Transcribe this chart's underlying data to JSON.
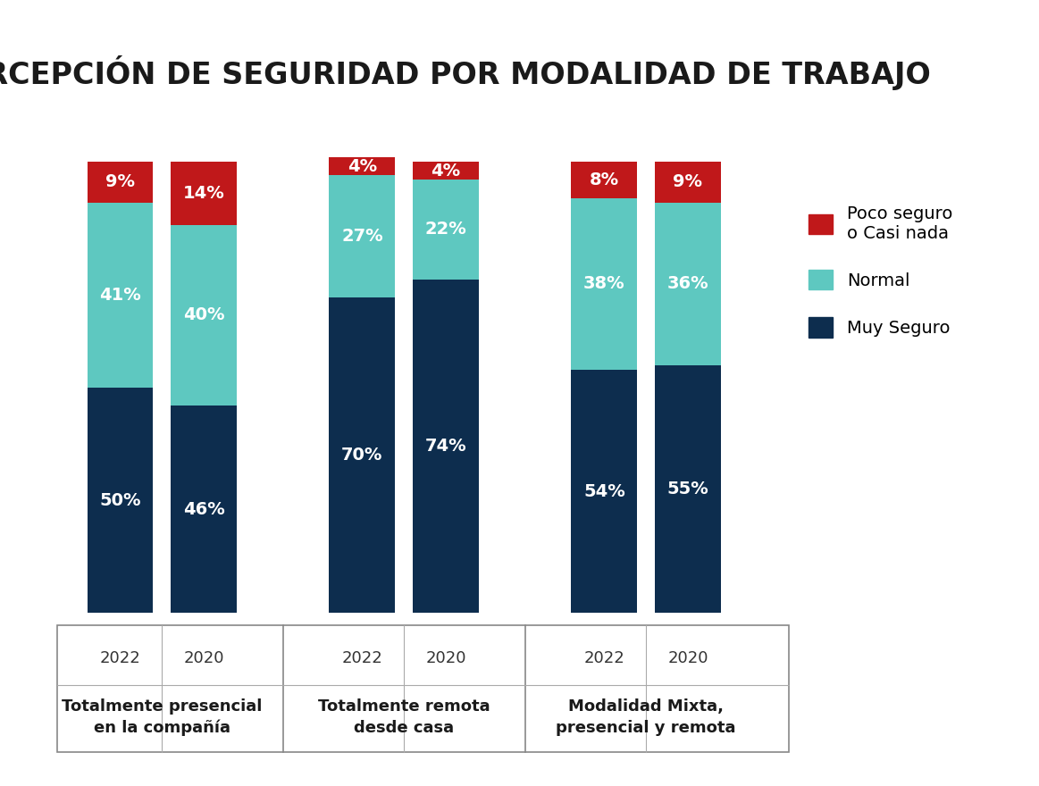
{
  "title": "PERCEPCIÓN DE SEGURIDAD POR MODALIDAD DE TRABAJO",
  "categories": [
    {
      "label": "Totalmente presencial\nen la compañía",
      "years": [
        "2022",
        "2020"
      ]
    },
    {
      "label": "Totalmente remota\ndesde casa",
      "years": [
        "2022",
        "2020"
      ]
    },
    {
      "label": "Modalidad Mixta,\npresencial y remota",
      "years": [
        "2022",
        "2020"
      ]
    }
  ],
  "data": {
    "muy_seguro": [
      50,
      46,
      70,
      74,
      54,
      55
    ],
    "normal": [
      41,
      40,
      27,
      22,
      38,
      36
    ],
    "poco_seguro": [
      9,
      14,
      4,
      4,
      8,
      9
    ]
  },
  "colors": {
    "muy_seguro": "#0d2d4e",
    "normal": "#5ec8c0",
    "poco_seguro": "#c0181a"
  },
  "legend_labels": {
    "poco_seguro": "Poco seguro\no Casi nada",
    "normal": "Normal",
    "muy_seguro": "Muy Seguro"
  },
  "background_color": "#ffffff",
  "bar_width": 0.6,
  "title_fontsize": 24,
  "label_fontsize": 13,
  "year_fontsize": 13,
  "annotation_fontsize": 14,
  "group_centers": [
    1.0,
    3.2,
    5.4
  ],
  "bar_offsets": [
    -0.38,
    0.38
  ],
  "xlim": [
    0.0,
    6.8
  ],
  "ylim": [
    0,
    108
  ]
}
